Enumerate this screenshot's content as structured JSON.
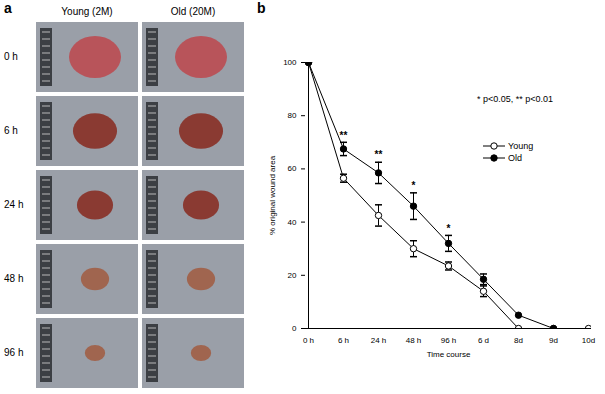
{
  "panel_a": {
    "label": "a",
    "columns": [
      "Young (2M)",
      "Old (20M)"
    ],
    "rows": [
      "0 h",
      "6 h",
      "24 h",
      "48 h",
      "96 h"
    ]
  },
  "panel_b_label": "b",
  "chart_data": {
    "type": "line",
    "x_label": "Time course",
    "y_label": "% original wound area",
    "categories": [
      "0 h",
      "6 h",
      "24 h",
      "48 h",
      "96 h",
      "6 d",
      "8d",
      "9d",
      "10d"
    ],
    "series": [
      {
        "name": "Young",
        "color": "#000000",
        "marker": "open_circle",
        "values": [
          100,
          56.5,
          42.5,
          30,
          23.5,
          14,
          0,
          0,
          0
        ],
        "errors": [
          0,
          1.5,
          4,
          3,
          1.5,
          2,
          0,
          0,
          0
        ]
      },
      {
        "name": "Old",
        "color": "#000000",
        "marker": "circle",
        "values": [
          100,
          67.5,
          58.5,
          46,
          32,
          18.5,
          5,
          0,
          null
        ],
        "errors": [
          0,
          2.5,
          4,
          5,
          3,
          2,
          0,
          0,
          null
        ]
      }
    ],
    "ylim": [
      0,
      100
    ],
    "yticks": [
      0,
      20,
      40,
      60,
      80,
      100
    ],
    "legend": "right",
    "annotations": [
      "* p<0.05, ** p<0.01"
    ],
    "significance": [
      {
        "x": "6 h",
        "label": "**"
      },
      {
        "x": "24 h",
        "label": "**"
      },
      {
        "x": "48 h",
        "label": "*"
      },
      {
        "x": "96 h",
        "label": "*"
      }
    ]
  }
}
